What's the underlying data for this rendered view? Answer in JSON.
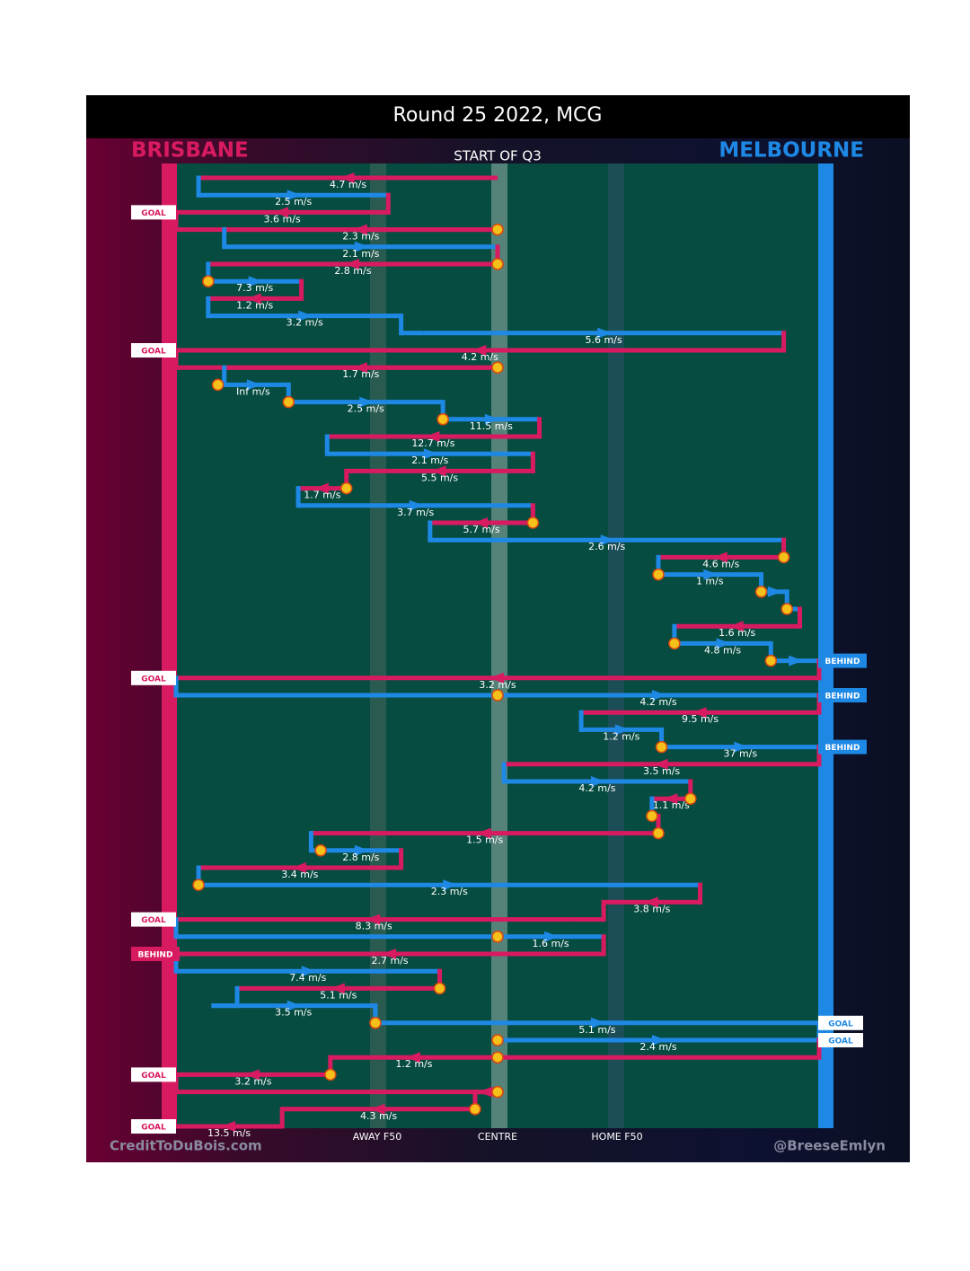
{
  "title": "Round 25 2022, MCG",
  "teams": {
    "home": "MELBOURNE",
    "away": "BRISBANE"
  },
  "header": "START OF Q3",
  "zones": {
    "away_f50": "AWAY F50",
    "centre": "CENTRE",
    "home_f50": "HOME F50"
  },
  "credit_left": "CreditToDuBois.com",
  "credit_right": "@BreeseEmlyn",
  "colors": {
    "brisbane": "#d81b60",
    "melbourne": "#1e88e5",
    "field": "#064c40",
    "marker": "#f5c01a",
    "marker_ring": "#d9480f"
  },
  "chart_data": {
    "type": "chain",
    "title": "Round 25 2022, MCG",
    "x_axis": {
      "range": [
        0,
        100
      ],
      "ticks": [
        {
          "value": 30,
          "label": "AWAY F50"
        },
        {
          "value": 50,
          "label": "CENTRE"
        },
        {
          "value": 70,
          "label": "HOME F50"
        }
      ]
    },
    "direction": "Brisbane attacks left (x=0), Melbourne attacks right (x=100)",
    "possessions": [
      {
        "team": "BRI",
        "from": 50,
        "to": 3.5,
        "speed": "4.7 m/s"
      },
      {
        "team": "MEL",
        "from": 3.5,
        "to": 33,
        "speed": "2.5 m/s"
      },
      {
        "team": "BRI",
        "from": 33,
        "to": 0,
        "speed": "3.6 m/s",
        "end": "GOAL"
      },
      {
        "team": "BRI",
        "from": 50,
        "to": 7.5,
        "speed": "2.3 m/s",
        "marker": true
      },
      {
        "team": "MEL",
        "from": 7.5,
        "to": 50,
        "speed": "2.1 m/s"
      },
      {
        "team": "BRI",
        "from": 50,
        "to": 5,
        "speed": "2.8 m/s",
        "marker": true
      },
      {
        "team": "MEL",
        "from": 5,
        "to": 19.5,
        "speed": "7.3 m/s",
        "marker": true
      },
      {
        "team": "BRI",
        "from": 19.5,
        "to": 5,
        "speed": "1.2 m/s"
      },
      {
        "team": "MEL",
        "from": 5,
        "to": 35,
        "speed": "3.2 m/s"
      },
      {
        "team": "MEL",
        "from": 38.5,
        "to": 94.5,
        "speed": "5.6 m/s"
      },
      {
        "team": "BRI",
        "from": 94.5,
        "to": 0,
        "speed": "4.2 m/s",
        "end": "GOAL"
      },
      {
        "team": "BRI",
        "from": 50,
        "to": 7.5,
        "speed": "1.7 m/s",
        "marker": true
      },
      {
        "team": "MEL",
        "from": 6.5,
        "to": 17.5,
        "speed": "Inf m/s",
        "marker": true
      },
      {
        "team": "MEL",
        "from": 17.5,
        "to": 41.5,
        "speed": "2.5 m/s",
        "marker": true
      },
      {
        "team": "MEL",
        "from": 41.5,
        "to": 56.5,
        "speed": "11.5 m/s",
        "marker": true
      },
      {
        "team": "BRI",
        "from": 56.5,
        "to": 23.5,
        "speed": "12.7 m/s"
      },
      {
        "team": "MEL",
        "from": 23.5,
        "to": 55.5,
        "speed": "2.1 m/s"
      },
      {
        "team": "BRI",
        "from": 55.5,
        "to": 26.5,
        "speed": "5.5 m/s"
      },
      {
        "team": "BRI",
        "from": 26.5,
        "to": 19,
        "speed": "1.7 m/s",
        "marker": true
      },
      {
        "team": "MEL",
        "from": 19,
        "to": 55.5,
        "speed": "3.7 m/s"
      },
      {
        "team": "BRI",
        "from": 55.5,
        "to": 39.5,
        "speed": "5.7 m/s",
        "marker": true
      },
      {
        "team": "MEL",
        "from": 39.5,
        "to": 94.5,
        "speed": "2.6 m/s"
      },
      {
        "team": "BRI",
        "from": 94.5,
        "to": 75,
        "speed": "4.6 m/s",
        "marker": true
      },
      {
        "team": "MEL",
        "from": 75,
        "to": 91,
        "speed": "1 m/s",
        "marker": true
      },
      {
        "team": "MEL",
        "from": 91,
        "to": 95,
        "speed": "",
        "marker": true
      },
      {
        "team": "MEL",
        "from": 95,
        "to": 97,
        "speed": "",
        "marker": true
      },
      {
        "team": "BRI",
        "from": 97,
        "to": 77.5,
        "speed": "1.6 m/s"
      },
      {
        "team": "MEL",
        "from": 77.5,
        "to": 92.5,
        "speed": "4.8 m/s",
        "marker": true
      },
      {
        "team": "MEL",
        "from": 92.5,
        "to": 100,
        "speed": "",
        "end": "BEHIND",
        "marker": true
      },
      {
        "team": "BRI",
        "from": 100,
        "to": 0,
        "speed": "3.2 m/s",
        "end": "GOAL"
      },
      {
        "team": "MEL",
        "from": 50,
        "to": 100,
        "speed": "4.2 m/s",
        "end": "BEHIND",
        "marker": true
      },
      {
        "team": "BRI",
        "from": 100,
        "to": 63,
        "speed": "9.5 m/s"
      },
      {
        "team": "MEL",
        "from": 63,
        "to": 75.5,
        "speed": "1.2 m/s"
      },
      {
        "team": "MEL",
        "from": 75.5,
        "to": 100,
        "speed": "37 m/s",
        "end": "BEHIND",
        "marker": true
      },
      {
        "team": "BRI",
        "from": 100,
        "to": 51,
        "speed": "3.5 m/s"
      },
      {
        "team": "MEL",
        "from": 51,
        "to": 80,
        "speed": "4.2 m/s"
      },
      {
        "team": "BRI",
        "from": 80,
        "to": 74,
        "speed": "1.1 m/s",
        "marker": true
      },
      {
        "team": "MEL",
        "from": 74,
        "to": 75,
        "speed": "",
        "marker": true
      },
      {
        "team": "BRI",
        "from": 75,
        "to": 21,
        "speed": "1.5 m/s",
        "marker": true
      },
      {
        "team": "MEL",
        "from": 22.5,
        "to": 35,
        "speed": "2.8 m/s",
        "marker": true
      },
      {
        "team": "BRI",
        "from": 35,
        "to": 3.5,
        "speed": "3.4 m/s"
      },
      {
        "team": "MEL",
        "from": 3.5,
        "to": 81.5,
        "speed": "2.3 m/s",
        "marker": true
      },
      {
        "team": "BRI",
        "from": 81.5,
        "to": 66.5,
        "speed": "3.8 m/s"
      },
      {
        "team": "BRI",
        "from": 61.5,
        "to": 0,
        "speed": "8.3 m/s",
        "end": "GOAL"
      },
      {
        "team": "MEL",
        "from": 50,
        "to": 66.5,
        "speed": "1.6 m/s",
        "marker": true
      },
      {
        "team": "BRI",
        "from": 66.5,
        "to": 0,
        "speed": "2.7 m/s",
        "end": "BEHIND"
      },
      {
        "team": "MEL",
        "from": 0,
        "to": 41,
        "speed": "7.4 m/s"
      },
      {
        "team": "BRI",
        "from": 41,
        "to": 9.5,
        "speed": "5.1 m/s",
        "marker": true
      },
      {
        "team": "MEL",
        "from": 5.5,
        "to": 31,
        "speed": "3.5 m/s"
      },
      {
        "team": "MEL",
        "from": 31,
        "to": 100,
        "speed": "5.1 m/s",
        "end": "GOAL",
        "marker": true
      },
      {
        "team": "MEL",
        "from": 50,
        "to": 100,
        "speed": "2.4 m/s",
        "end": "GOAL",
        "marker": true
      },
      {
        "team": "BRI",
        "from": 50,
        "to": 24,
        "speed": "1.2 m/s",
        "marker": true
      },
      {
        "team": "BRI",
        "from": 24,
        "to": 0,
        "speed": "3.2 m/s",
        "end": "GOAL",
        "marker": true
      },
      {
        "team": "BRI",
        "from": 50,
        "to": 46.5,
        "speed": "",
        "marker": true
      },
      {
        "team": "BRI",
        "from": 46.5,
        "to": 16.5,
        "speed": "4.3 m/s",
        "marker": true
      },
      {
        "team": "BRI",
        "from": 16.5,
        "to": 0,
        "speed": "13.5 m/s",
        "end": "GOAL"
      }
    ]
  }
}
